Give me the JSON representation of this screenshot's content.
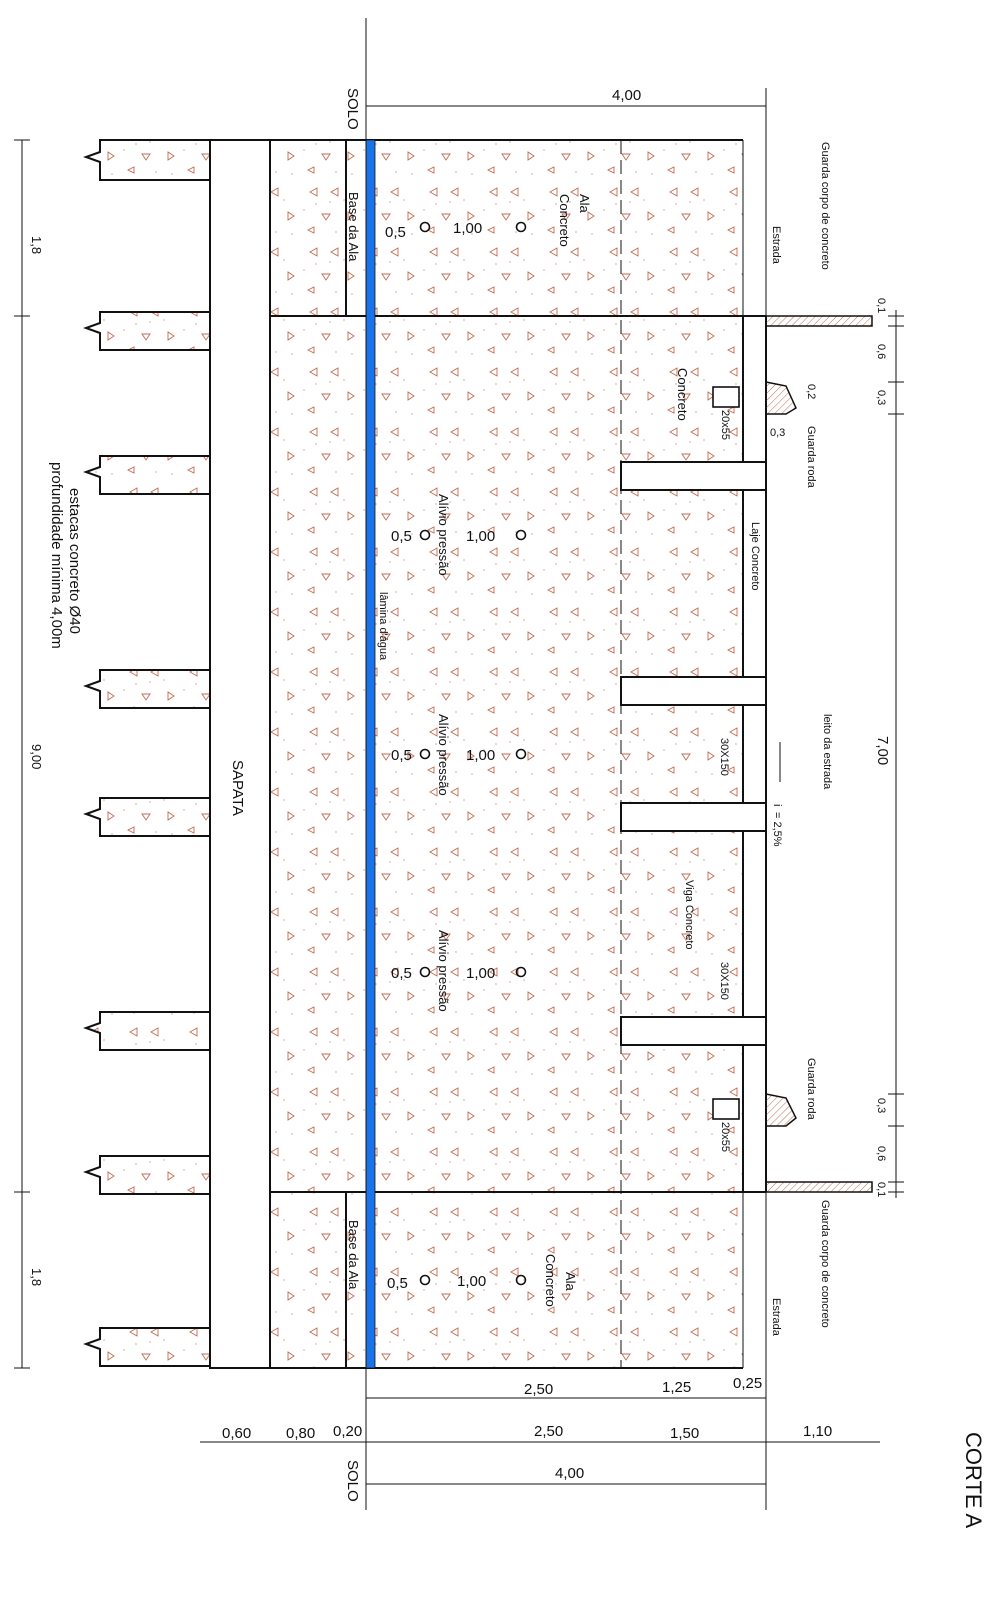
{
  "title": "CORTE A",
  "colors": {
    "line": "#111111",
    "water": "#1a73e8",
    "hatch": "#c26a50",
    "fill": "#ffffff"
  },
  "top": {
    "solo": "SOLO",
    "width_4": "4,00",
    "guarda_corpo_label": "Guarda corpo de concreto",
    "estrada": "Estrada",
    "ala_top": "Ala",
    "concreto_top": "Concreto",
    "base_ala": "Base da Ala",
    "dim_05": "0,5",
    "dim_100": "1,00"
  },
  "bottom": {
    "guarda_corpo_label": "Guarda corpo de concreto",
    "estrada": "Estrada",
    "ala": "Ala",
    "concreto": "Concreto",
    "base_ala": "Base da Ala",
    "dim_05": "0,5",
    "dim_100": "1,00",
    "dims_row1": [
      "2,50",
      "1,25",
      "0,25"
    ],
    "dims_row2": [
      "0,60",
      "0,80",
      "0,20",
      "2,50",
      "1,50",
      "1,10"
    ],
    "solo": "SOLO",
    "width_4": "4,00"
  },
  "left": {
    "dim_top": "1,8",
    "dim_mid": "9,00",
    "dim_bottom": "1,8",
    "estacas_1": "estacas concreto Ø40",
    "estacas_2": "profundidade mínima 4,00m",
    "sapata": "SAPATA"
  },
  "middle": {
    "concreto": "Concreto",
    "dim_20x55_top": "20x55",
    "dim_20x55_bottom": "20x55",
    "alivio_1": "Alívio pressão",
    "alivio_2": "Alívio pressão",
    "alivio_3": "Alívio pressão",
    "dim_05": "0,5",
    "dim_100": "1,00",
    "lamina": "lâmina d'água",
    "laje": "Laje Concreto",
    "viga": "Viga Concreto",
    "dim_30x150_a": "30X150",
    "dim_30x150_b": "30X150"
  },
  "right": {
    "d01_top": "0,1",
    "d06_top": "0,6",
    "d02": "0,2",
    "d03_top": "0,3",
    "d03_small": "0,3",
    "guarda_roda_top": "Guarda roda",
    "width_7": "7,00",
    "leito": "leito da estrada",
    "incl_i": "i",
    "incl_val": "= 2,5%",
    "guarda_roda_bottom": "Guarda roda",
    "d03_bottom": "0,3",
    "d06_bottom": "0,6",
    "d01_bottom": "0,1"
  }
}
